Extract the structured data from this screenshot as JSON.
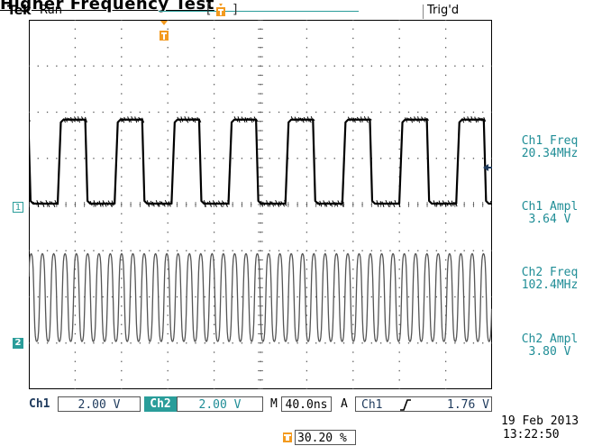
{
  "header": {
    "fragment": "Higher Frequency Test",
    "brand": "Tek",
    "run_state": "Run",
    "trigger_state": "Trig'd"
  },
  "channels": {
    "ch1_marker": "1",
    "ch2_marker": "2"
  },
  "measurements": [
    {
      "line1": "Ch1 Freq",
      "line2": "20.34MHz"
    },
    {
      "line1": "Ch1 Ampl",
      "line2": "3.64 V"
    },
    {
      "line1": "Ch2 Freq",
      "line2": "102.4MHz"
    },
    {
      "line1": "Ch2 Ampl",
      "line2": "3.80 V"
    }
  ],
  "readout": {
    "ch1_label": "Ch1",
    "ch1_scale": "2.00 V",
    "ch2_label": "Ch2",
    "ch2_scale": "2.00 V",
    "timebase_label": "M",
    "timebase": "40.0ns",
    "trigger_mode": "A",
    "trigger_source": "Ch1",
    "trigger_level": "1.76 V"
  },
  "trigger_position": "30.20 %",
  "timestamp": {
    "date": "19 Feb  2013",
    "time": "13:22:50"
  },
  "colors": {
    "ch2_accent": "#2a9d9a",
    "measurement_text": "#1f8d96",
    "trigger_marker": "#f39a1f",
    "trace": "#000000"
  },
  "icons": {
    "trigger_position_marker": "trigger-t-icon",
    "trigger_level_arrow": "left-arrow-icon",
    "rising_edge": "rising-edge-icon"
  },
  "waveforms": {
    "ch1": {
      "frequency_mhz": 20.34,
      "amplitude_v": 3.64
    },
    "ch2": {
      "frequency_mhz": 102.4,
      "amplitude_v": 3.8
    },
    "timebase_ns_per_div": 40,
    "volts_per_div": 2
  }
}
